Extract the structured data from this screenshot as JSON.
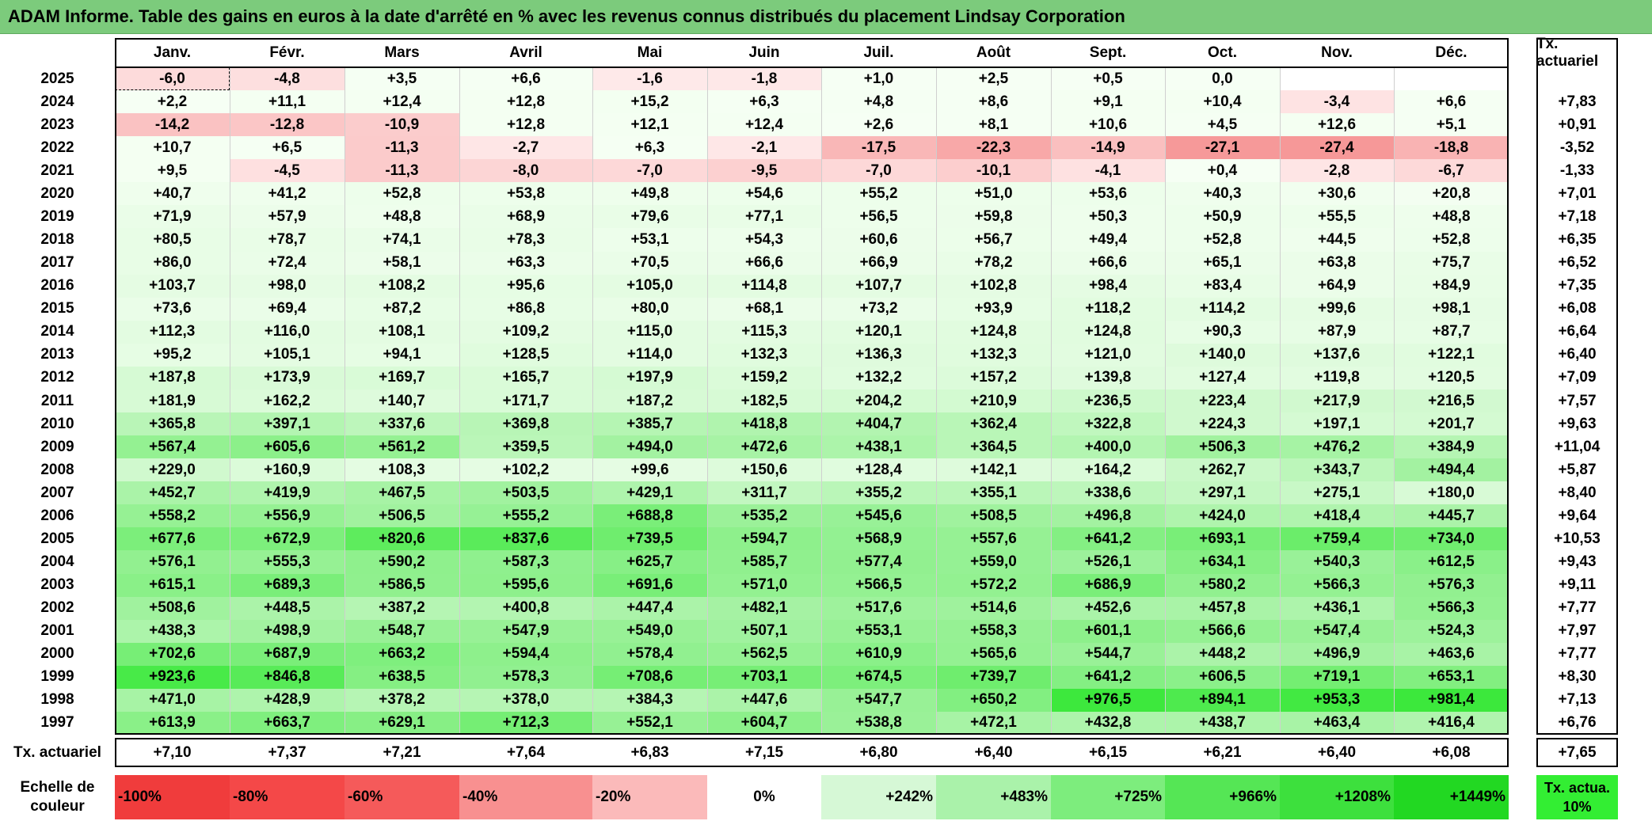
{
  "title": "ADAM Informe. Table des gains en euros à la date d'arrêté en % avec les revenus connus distribués du placement Lindsay Corporation",
  "chart_data": {
    "type": "heatmap",
    "months": [
      "Janv.",
      "Févr.",
      "Mars",
      "Avril",
      "Mai",
      "Juin",
      "Juil.",
      "Août",
      "Sept.",
      "Oct.",
      "Nov.",
      "Déc."
    ],
    "annual_header": "Tx. actuariel",
    "rows": [
      {
        "year": "2025",
        "values": [
          "-6,0",
          "-4,8",
          "+3,5",
          "+6,6",
          "-1,6",
          "-1,8",
          "+1,0",
          "+2,5",
          "+0,5",
          "0,0",
          "",
          ""
        ],
        "annual": ""
      },
      {
        "year": "2024",
        "values": [
          "+2,2",
          "+11,1",
          "+12,4",
          "+12,8",
          "+15,2",
          "+6,3",
          "+4,8",
          "+8,6",
          "+9,1",
          "+10,4",
          "-3,4",
          "+6,6"
        ],
        "annual": "+7,83"
      },
      {
        "year": "2023",
        "values": [
          "-14,2",
          "-12,8",
          "-10,9",
          "+12,8",
          "+12,1",
          "+12,4",
          "+2,6",
          "+8,1",
          "+10,6",
          "+4,5",
          "+12,6",
          "+5,1"
        ],
        "annual": "+0,91"
      },
      {
        "year": "2022",
        "values": [
          "+10,7",
          "+6,5",
          "-11,3",
          "-2,7",
          "+6,3",
          "-2,1",
          "-17,5",
          "-22,3",
          "-14,9",
          "-27,1",
          "-27,4",
          "-18,8"
        ],
        "annual": "-3,52"
      },
      {
        "year": "2021",
        "values": [
          "+9,5",
          "-4,5",
          "-11,3",
          "-8,0",
          "-7,0",
          "-9,5",
          "-7,0",
          "-10,1",
          "-4,1",
          "+0,4",
          "-2,8",
          "-6,7"
        ],
        "annual": "-1,33"
      },
      {
        "year": "2020",
        "values": [
          "+40,7",
          "+41,2",
          "+52,8",
          "+53,8",
          "+49,8",
          "+54,6",
          "+55,2",
          "+51,0",
          "+53,6",
          "+40,3",
          "+30,6",
          "+20,8"
        ],
        "annual": "+7,01"
      },
      {
        "year": "2019",
        "values": [
          "+71,9",
          "+57,9",
          "+48,8",
          "+68,9",
          "+79,6",
          "+77,1",
          "+56,5",
          "+59,8",
          "+50,3",
          "+50,9",
          "+55,5",
          "+48,8"
        ],
        "annual": "+7,18"
      },
      {
        "year": "2018",
        "values": [
          "+80,5",
          "+78,7",
          "+74,1",
          "+78,3",
          "+53,1",
          "+54,3",
          "+60,6",
          "+56,7",
          "+49,4",
          "+52,8",
          "+44,5",
          "+52,8"
        ],
        "annual": "+6,35"
      },
      {
        "year": "2017",
        "values": [
          "+86,0",
          "+72,4",
          "+58,1",
          "+63,3",
          "+70,5",
          "+66,6",
          "+66,9",
          "+78,2",
          "+66,6",
          "+65,1",
          "+63,8",
          "+75,7"
        ],
        "annual": "+6,52"
      },
      {
        "year": "2016",
        "values": [
          "+103,7",
          "+98,0",
          "+108,2",
          "+95,6",
          "+105,0",
          "+114,8",
          "+107,7",
          "+102,8",
          "+98,4",
          "+83,4",
          "+64,9",
          "+84,9"
        ],
        "annual": "+7,35"
      },
      {
        "year": "2015",
        "values": [
          "+73,6",
          "+69,4",
          "+87,2",
          "+86,8",
          "+80,0",
          "+68,1",
          "+73,2",
          "+93,9",
          "+118,2",
          "+114,2",
          "+99,6",
          "+98,1"
        ],
        "annual": "+6,08"
      },
      {
        "year": "2014",
        "values": [
          "+112,3",
          "+116,0",
          "+108,1",
          "+109,2",
          "+115,0",
          "+115,3",
          "+120,1",
          "+124,8",
          "+124,8",
          "+90,3",
          "+87,9",
          "+87,7"
        ],
        "annual": "+6,64"
      },
      {
        "year": "2013",
        "values": [
          "+95,2",
          "+105,1",
          "+94,1",
          "+128,5",
          "+114,0",
          "+132,3",
          "+136,3",
          "+132,3",
          "+121,0",
          "+140,0",
          "+137,6",
          "+122,1"
        ],
        "annual": "+6,40"
      },
      {
        "year": "2012",
        "values": [
          "+187,8",
          "+173,9",
          "+169,7",
          "+165,7",
          "+197,9",
          "+159,2",
          "+132,2",
          "+157,2",
          "+139,8",
          "+127,4",
          "+119,8",
          "+120,5"
        ],
        "annual": "+7,09"
      },
      {
        "year": "2011",
        "values": [
          "+181,9",
          "+162,2",
          "+140,7",
          "+171,7",
          "+187,2",
          "+182,5",
          "+204,2",
          "+210,9",
          "+236,5",
          "+223,4",
          "+217,9",
          "+216,5"
        ],
        "annual": "+7,57"
      },
      {
        "year": "2010",
        "values": [
          "+365,8",
          "+397,1",
          "+337,6",
          "+369,8",
          "+385,7",
          "+418,8",
          "+404,7",
          "+362,4",
          "+322,8",
          "+224,3",
          "+197,1",
          "+201,7"
        ],
        "annual": "+9,63"
      },
      {
        "year": "2009",
        "values": [
          "+567,4",
          "+605,6",
          "+561,2",
          "+359,5",
          "+494,0",
          "+472,6",
          "+438,1",
          "+364,5",
          "+400,0",
          "+506,3",
          "+476,2",
          "+384,9"
        ],
        "annual": "+11,04"
      },
      {
        "year": "2008",
        "values": [
          "+229,0",
          "+160,9",
          "+108,3",
          "+102,2",
          "+99,6",
          "+150,6",
          "+128,4",
          "+142,1",
          "+164,2",
          "+262,7",
          "+343,7",
          "+494,4"
        ],
        "annual": "+5,87"
      },
      {
        "year": "2007",
        "values": [
          "+452,7",
          "+419,9",
          "+467,5",
          "+503,5",
          "+429,1",
          "+311,7",
          "+355,2",
          "+355,1",
          "+338,6",
          "+297,1",
          "+275,1",
          "+180,0"
        ],
        "annual": "+8,40"
      },
      {
        "year": "2006",
        "values": [
          "+558,2",
          "+556,9",
          "+506,5",
          "+555,2",
          "+688,8",
          "+535,2",
          "+545,6",
          "+508,5",
          "+496,8",
          "+424,0",
          "+418,4",
          "+445,7"
        ],
        "annual": "+9,64"
      },
      {
        "year": "2005",
        "values": [
          "+677,6",
          "+672,9",
          "+820,6",
          "+837,6",
          "+739,5",
          "+594,7",
          "+568,9",
          "+557,6",
          "+641,2",
          "+693,1",
          "+759,4",
          "+734,0"
        ],
        "annual": "+10,53"
      },
      {
        "year": "2004",
        "values": [
          "+576,1",
          "+555,3",
          "+590,2",
          "+587,3",
          "+625,7",
          "+585,7",
          "+577,4",
          "+559,0",
          "+526,1",
          "+634,1",
          "+540,3",
          "+612,5"
        ],
        "annual": "+9,43"
      },
      {
        "year": "2003",
        "values": [
          "+615,1",
          "+689,3",
          "+586,5",
          "+595,6",
          "+691,6",
          "+571,0",
          "+566,5",
          "+572,2",
          "+686,9",
          "+580,2",
          "+566,3",
          "+576,3"
        ],
        "annual": "+9,11"
      },
      {
        "year": "2002",
        "values": [
          "+508,6",
          "+448,5",
          "+387,2",
          "+400,8",
          "+447,4",
          "+482,1",
          "+517,6",
          "+514,6",
          "+452,6",
          "+457,8",
          "+436,1",
          "+566,3"
        ],
        "annual": "+7,77"
      },
      {
        "year": "2001",
        "values": [
          "+438,3",
          "+498,9",
          "+548,7",
          "+547,9",
          "+549,0",
          "+507,1",
          "+553,1",
          "+558,3",
          "+601,1",
          "+566,6",
          "+547,4",
          "+524,3"
        ],
        "annual": "+7,97"
      },
      {
        "year": "2000",
        "values": [
          "+702,6",
          "+687,9",
          "+663,2",
          "+594,4",
          "+578,4",
          "+562,5",
          "+610,9",
          "+565,6",
          "+544,7",
          "+448,2",
          "+496,9",
          "+463,6"
        ],
        "annual": "+7,77"
      },
      {
        "year": "1999",
        "values": [
          "+923,6",
          "+846,8",
          "+638,5",
          "+578,3",
          "+708,6",
          "+703,1",
          "+674,5",
          "+739,7",
          "+641,2",
          "+606,5",
          "+719,1",
          "+653,1"
        ],
        "annual": "+8,30"
      },
      {
        "year": "1998",
        "values": [
          "+471,0",
          "+428,9",
          "+378,2",
          "+378,0",
          "+384,3",
          "+447,6",
          "+547,7",
          "+650,2",
          "+976,5",
          "+894,1",
          "+953,3",
          "+981,4"
        ],
        "annual": "+7,13"
      },
      {
        "year": "1997",
        "values": [
          "+613,9",
          "+663,7",
          "+629,1",
          "+712,3",
          "+552,1",
          "+604,7",
          "+538,8",
          "+472,1",
          "+432,8",
          "+438,7",
          "+463,4",
          "+416,4"
        ],
        "annual": "+6,76"
      }
    ],
    "footer_label": "Tx. actuariel",
    "footer_values": [
      "+7,10",
      "+7,37",
      "+7,21",
      "+7,64",
      "+6,83",
      "+7,15",
      "+6,80",
      "+6,40",
      "+6,15",
      "+6,21",
      "+6,40",
      "+6,08"
    ],
    "footer_total": "+7,65",
    "scale_label": "Echelle de couleur",
    "scale": [
      {
        "label": "-100%",
        "color": "#f03c3c"
      },
      {
        "label": "-80%",
        "color": "#f44848"
      },
      {
        "label": "-60%",
        "color": "#f55a5a"
      },
      {
        "label": "-40%",
        "color": "#f89090"
      },
      {
        "label": "-20%",
        "color": "#fbbaba"
      },
      {
        "label": "0%",
        "color": "#ffffff"
      },
      {
        "label": "+242%",
        "color": "#d6f8d6"
      },
      {
        "label": "+483%",
        "color": "#aaf2aa"
      },
      {
        "label": "+725%",
        "color": "#7ded7d"
      },
      {
        "label": "+966%",
        "color": "#55e655"
      },
      {
        "label": "+1208%",
        "color": "#3de03d"
      },
      {
        "label": "+1449%",
        "color": "#22d822"
      }
    ],
    "scale_end_label": "Tx. actua. 10%"
  }
}
